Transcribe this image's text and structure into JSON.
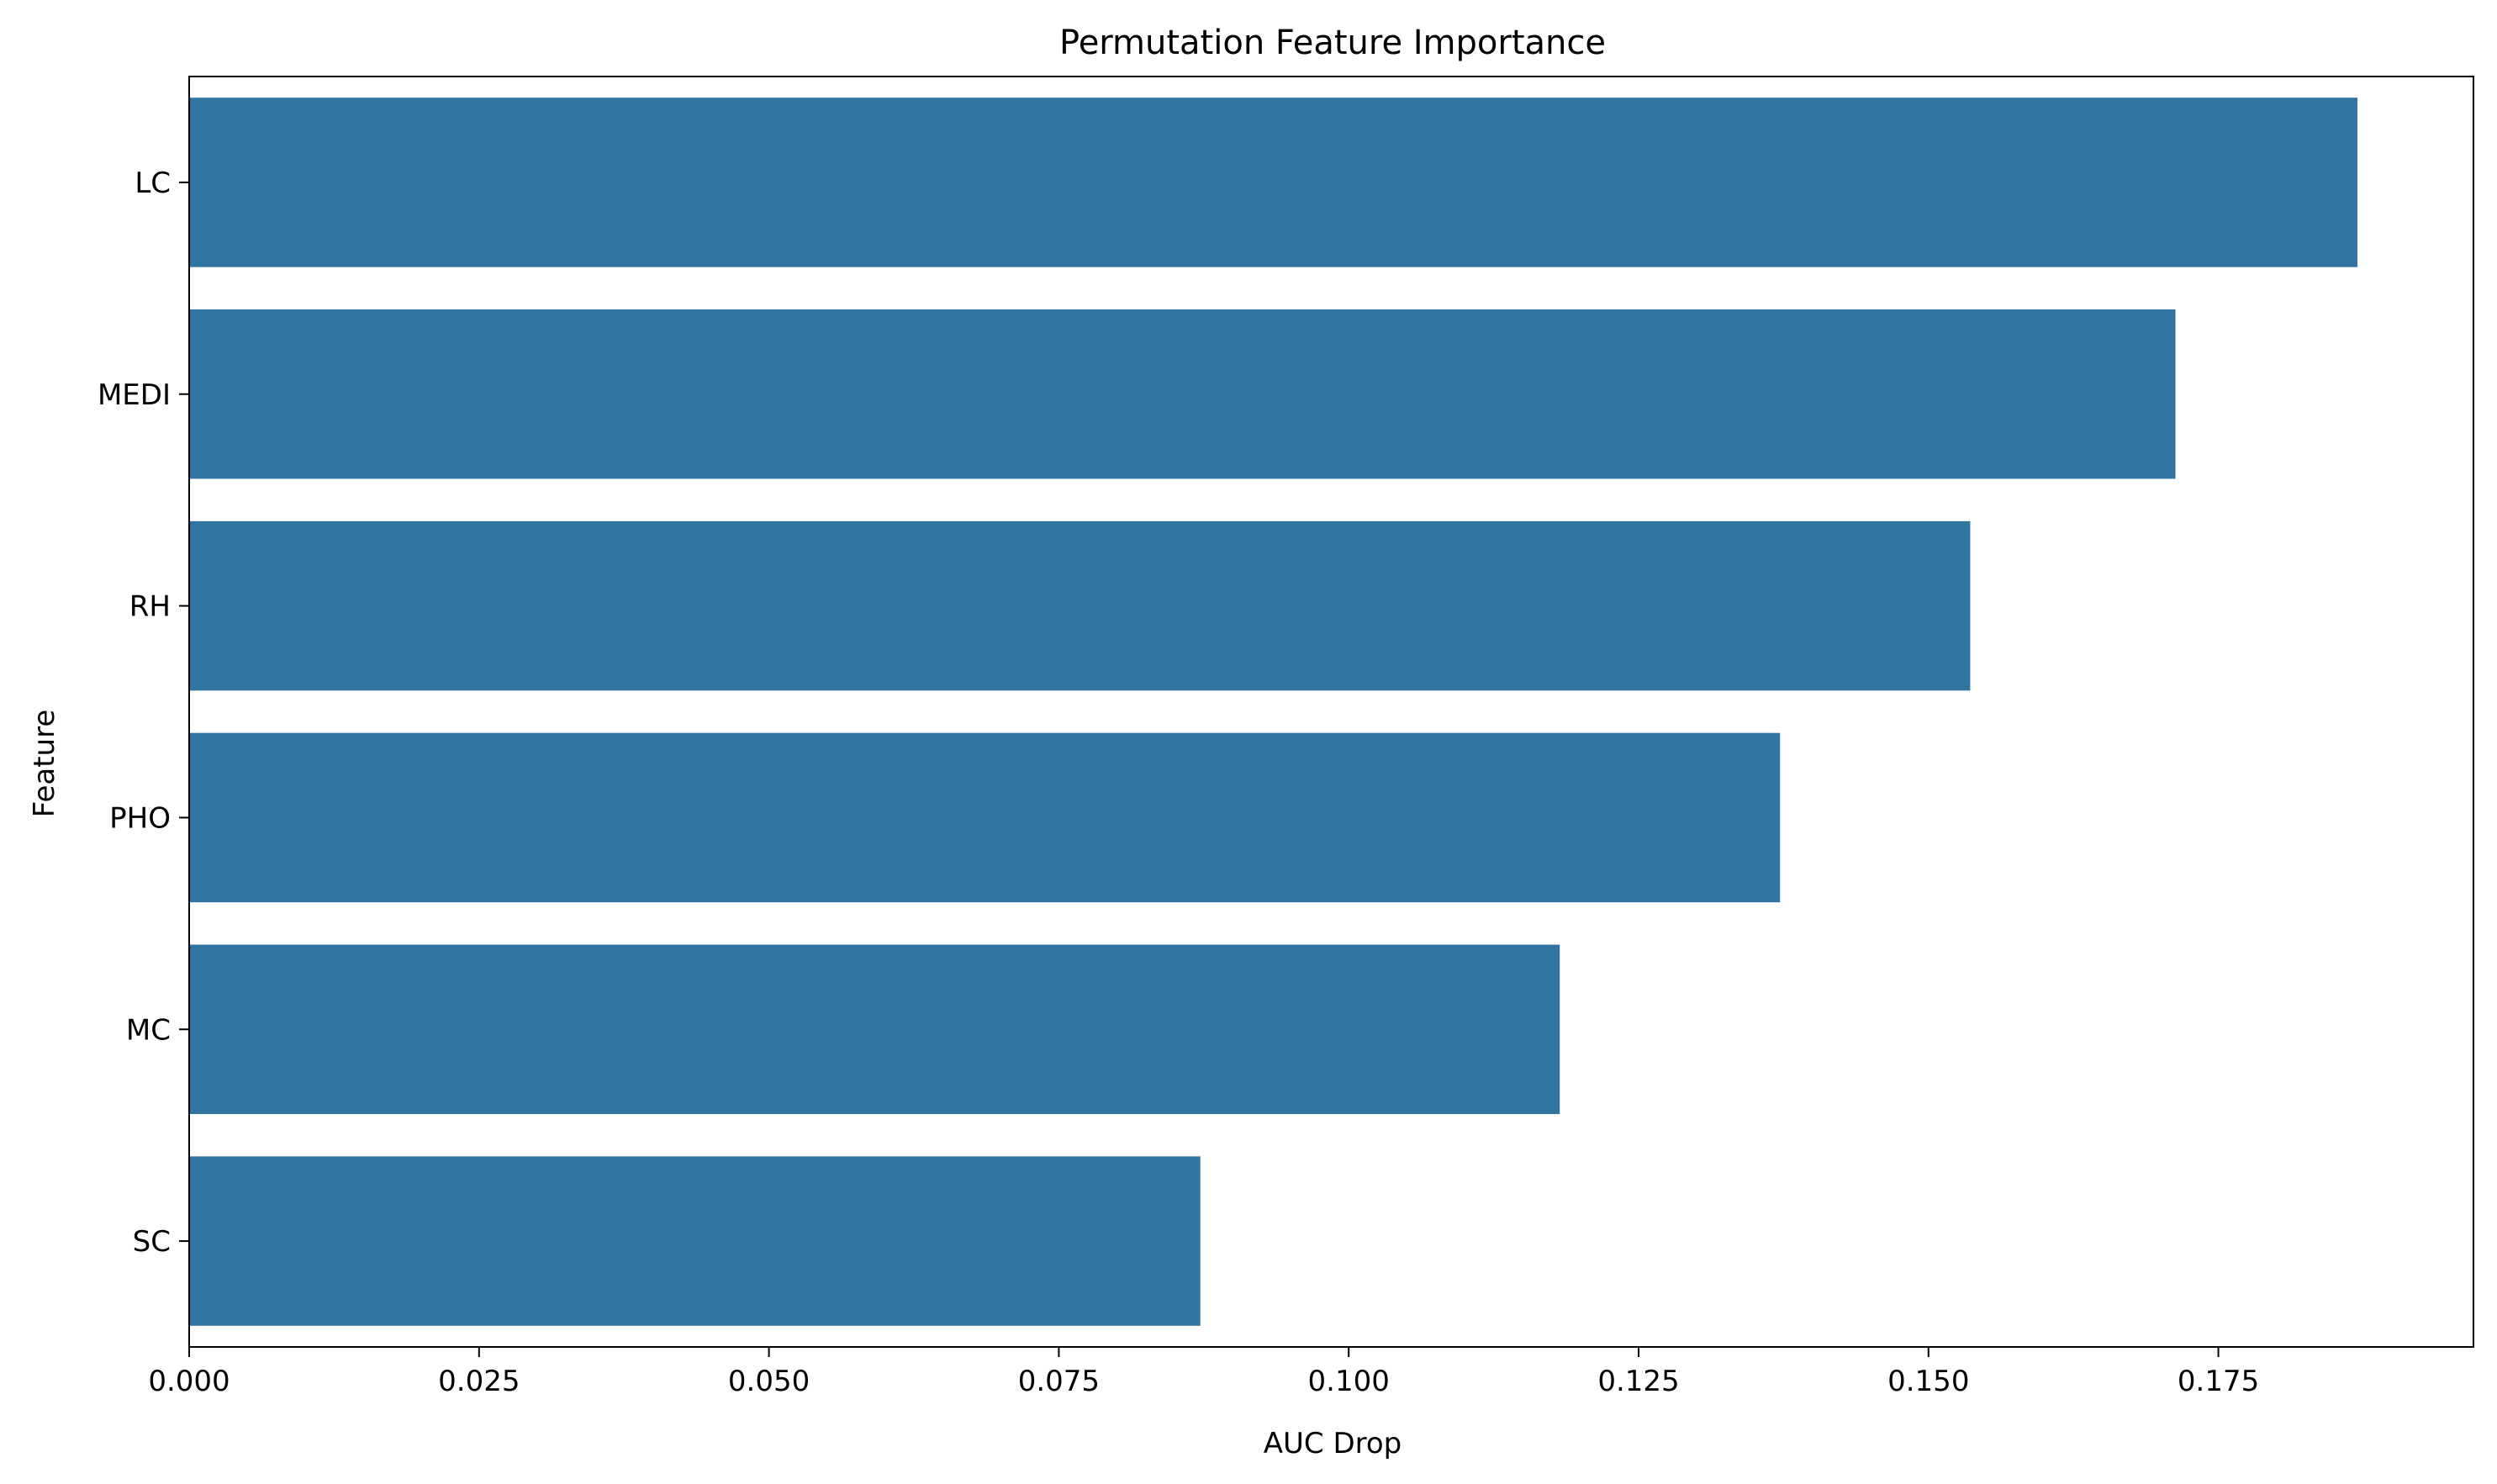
{
  "chart_data": {
    "type": "bar",
    "orientation": "horizontal",
    "title": "Permutation Feature Importance",
    "xlabel": "AUC Drop",
    "ylabel": "Feature",
    "categories": [
      "LC",
      "MEDI",
      "RH",
      "PHO",
      "MC",
      "SC"
    ],
    "values": [
      0.187,
      0.1713,
      0.1536,
      0.1372,
      0.1182,
      0.0872
    ],
    "xlim": [
      0,
      0.197
    ],
    "xticks": [
      "0.000",
      "0.025",
      "0.050",
      "0.075",
      "0.100",
      "0.125",
      "0.150",
      "0.175"
    ],
    "grid": false,
    "bar_color": "#3274a1"
  }
}
